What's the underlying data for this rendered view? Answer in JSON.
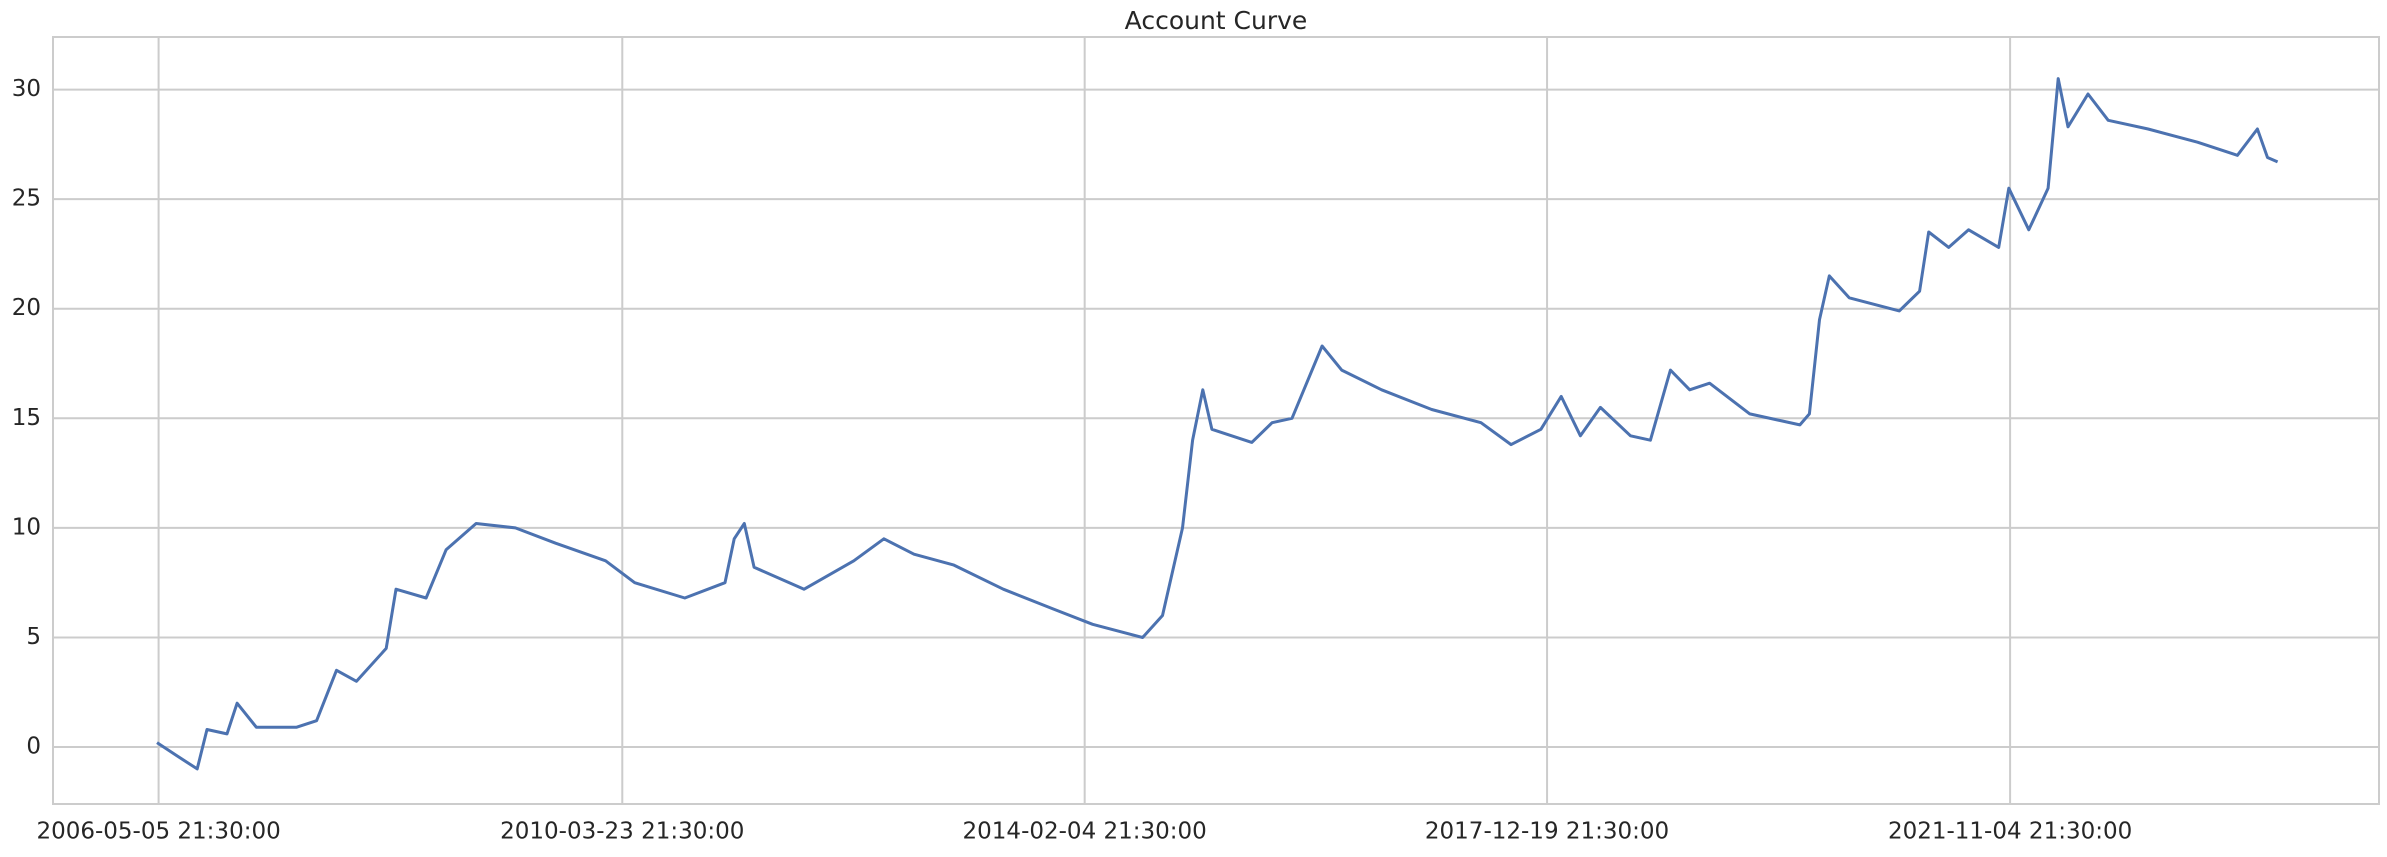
{
  "chart_data": {
    "type": "line",
    "title": "Account Curve",
    "x": [
      "2006-05",
      "2006-07",
      "2006-09",
      "2006-10",
      "2006-12",
      "2007-01",
      "2007-03",
      "2007-07",
      "2007-09",
      "2007-11",
      "2008-01",
      "2008-04",
      "2008-05",
      "2008-08",
      "2008-10",
      "2009-01",
      "2009-05",
      "2009-09",
      "2010-02",
      "2010-05",
      "2010-10",
      "2011-02",
      "2011-03",
      "2011-04",
      "2011-05",
      "2011-10",
      "2012-03",
      "2012-06",
      "2012-09",
      "2013-01",
      "2013-06",
      "2013-11",
      "2014-03",
      "2014-08",
      "2014-10",
      "2014-12",
      "2015-01",
      "2015-02",
      "2015-03",
      "2015-07",
      "2015-09",
      "2015-11",
      "2016-02",
      "2016-04",
      "2016-08",
      "2017-01",
      "2017-06",
      "2017-09",
      "2017-12",
      "2018-02",
      "2018-04",
      "2018-06",
      "2018-09",
      "2018-11",
      "2019-01",
      "2019-03",
      "2019-05",
      "2019-09",
      "2020-02",
      "2020-03",
      "2020-04",
      "2020-05",
      "2020-07",
      "2020-12",
      "2021-02",
      "2021-03",
      "2021-05",
      "2021-07",
      "2021-10",
      "2021-11",
      "2022-01",
      "2022-03",
      "2022-04",
      "2022-05",
      "2022-07",
      "2022-09",
      "2023-01",
      "2023-06",
      "2023-10",
      "2023-12",
      "2024-01",
      "2024-02"
    ],
    "series": [
      {
        "color": "#4c72b0",
        "values": [
          0.2,
          -0.4,
          -1.0,
          0.8,
          0.6,
          2.0,
          0.9,
          0.9,
          1.2,
          3.5,
          3.0,
          4.5,
          7.2,
          6.8,
          9.0,
          10.2,
          10.0,
          9.3,
          8.5,
          7.5,
          6.8,
          7.5,
          9.5,
          10.2,
          8.2,
          7.2,
          8.5,
          9.5,
          8.8,
          8.3,
          7.2,
          6.3,
          5.6,
          5.0,
          6.0,
          10.0,
          14.0,
          16.3,
          14.5,
          13.9,
          14.8,
          15.0,
          18.3,
          17.2,
          16.3,
          15.4,
          14.8,
          13.8,
          14.5,
          16.0,
          14.2,
          15.5,
          14.2,
          14.0,
          17.2,
          16.3,
          16.6,
          15.2,
          14.7,
          15.2,
          19.5,
          21.5,
          20.5,
          19.9,
          20.8,
          23.5,
          22.8,
          23.6,
          22.8,
          25.5,
          23.6,
          25.5,
          30.5,
          28.3,
          29.8,
          28.6,
          28.2,
          27.6,
          27.0,
          28.2,
          26.9,
          26.7
        ]
      }
    ],
    "xlim": [
      "2005-06-17",
      "2024-12-07"
    ],
    "xticks": [
      "2006-05-05 21:30:00",
      "2010-03-23 21:30:00",
      "2014-02-04 21:30:00",
      "2017-12-19 21:30:00",
      "2021-11-04 21:30:00"
    ],
    "ylim": [
      -2.6,
      32.4
    ],
    "yticks": [
      0,
      5,
      10,
      15,
      20,
      25,
      30
    ],
    "grid": true
  }
}
